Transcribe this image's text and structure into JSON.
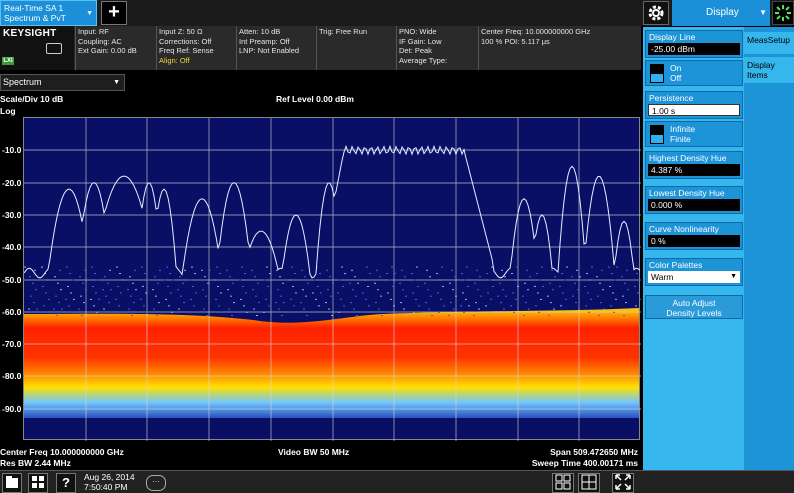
{
  "meas_tab": {
    "line1": "Real-Time SA 1",
    "line2": "Spectrum & PvT"
  },
  "add_tab": "+",
  "display_menu": "Display",
  "logo": {
    "brand": "KEYSIGHT",
    "lxi": "LXI"
  },
  "info": {
    "col1": [
      "Input: RF",
      "Coupling: AC",
      "Ext Gain: 0.00 dB"
    ],
    "col2": [
      "Input Z: 50 Ω",
      "Corrections: Off",
      "Freq Ref: Sense",
      "Align: Off"
    ],
    "col3": [
      "Atten: 10 dB",
      "Int Preamp: Off",
      "LNP: Not Enabled"
    ],
    "col4": [
      "Trig: Free Run"
    ],
    "col5": [
      "PNO: Wide",
      "IF Gain: Low",
      "Det: Peak",
      "Average Type:"
    ],
    "col6": [
      "Center Freq: 10.000000000 GHz",
      "100 % POI: 5.117 μs"
    ]
  },
  "spectrum_select": "Spectrum",
  "plot": {
    "scale_div": "Scale/Div 10 dB",
    "ref_level": "Ref Level 0.00 dBm",
    "scale_type": "Log",
    "y_labels": [
      "-10.0",
      "-20.0",
      "-30.0",
      "-40.0",
      "-50.0",
      "-60.0",
      "-70.0",
      "-80.0",
      "-90.0"
    ]
  },
  "footer": {
    "center_freq": "Center Freq 10.000000000 GHz",
    "res_bw": "Res BW 2.44 MHz",
    "video_bw": "Video BW 50 MHz",
    "span": "Span 509.472650 MHz",
    "sweep_time": "Sweep Time 400.00171 ms"
  },
  "taskbar": {
    "date": "Aug 26, 2014",
    "time": "7:50:40 PM",
    "chat": "···"
  },
  "panel": {
    "display_line": {
      "label": "Display Line",
      "value": "-25.00 dBm",
      "on": "On",
      "off": "Off"
    },
    "persistence": {
      "label": "Persistence",
      "value": "1.00 s",
      "infinite": "Infinite",
      "finite": "Finite"
    },
    "highest_density_hue": {
      "label": "Highest Density Hue",
      "value": "4.387 %"
    },
    "lowest_density_hue": {
      "label": "Lowest Density Hue",
      "value": "0.000 %"
    },
    "curve_nonlinearity": {
      "label": "Curve Nonlinearity",
      "value": "0 %"
    },
    "color_palettes": {
      "label": "Color Palettes",
      "value": "Warm"
    },
    "auto_adjust": {
      "line1": "Auto Adjust",
      "line2": "Density Levels"
    }
  },
  "menu": {
    "meas_setup": "MeasSetup",
    "display_items_1": "Display",
    "display_items_2": "Items"
  },
  "colors": {
    "accent": "#1b8fd8",
    "panel": "#35b6ec",
    "plot_bg": "#0a0f66",
    "trace": "#dde8ff"
  }
}
